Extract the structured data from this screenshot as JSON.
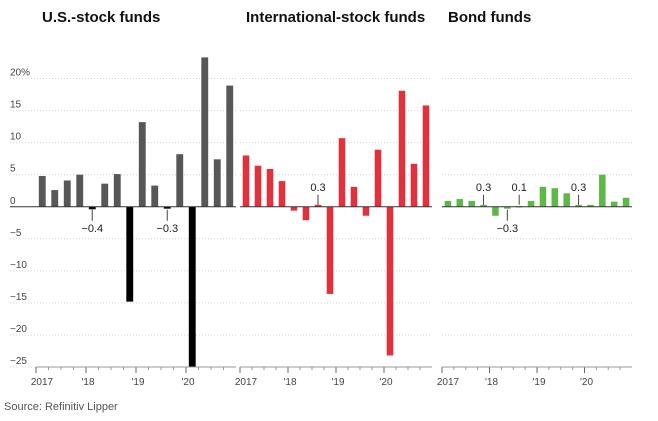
{
  "source": "Source: Refinitiv Lipper",
  "chart_data": [
    {
      "type": "bar",
      "title": "U.S.-stock funds",
      "color": "#575757",
      "negative_color": "#000000",
      "ylim": [
        -25,
        25
      ],
      "yticks": [
        20,
        15,
        10,
        5,
        0,
        -5,
        -10,
        -15,
        -20,
        -25
      ],
      "ytick_labels": [
        "20%",
        "15",
        "10",
        "5",
        "0",
        "−5",
        "−10",
        "−15",
        "−20",
        "−25"
      ],
      "xtick_labels": [
        "2017",
        "'18",
        "'19",
        "'20"
      ],
      "values": [
        4.8,
        2.6,
        4.1,
        5.0,
        -0.4,
        3.6,
        5.1,
        -14.8,
        13.2,
        3.3,
        -0.3,
        8.2,
        -25.0,
        23.3,
        7.4,
        18.9
      ],
      "annotations": [
        {
          "index": 4,
          "label": "−0.4"
        },
        {
          "index": 10,
          "label": "−0.3"
        }
      ]
    },
    {
      "type": "bar",
      "title": "International-stock funds",
      "color": "#e0323c",
      "negative_color": "#e0323c",
      "ylim": [
        -25,
        25
      ],
      "xtick_labels": [
        "2017",
        "'18",
        "'19",
        "'20"
      ],
      "values": [
        8.0,
        6.4,
        5.9,
        4.0,
        -0.6,
        -2.1,
        0.3,
        -13.6,
        10.7,
        3.1,
        -1.4,
        8.9,
        -23.2,
        18.1,
        6.7,
        15.8
      ],
      "annotations": [
        {
          "index": 6,
          "label": "0.3"
        }
      ]
    },
    {
      "type": "bar",
      "title": "Bond funds",
      "color": "#5cb946",
      "negative_color": "#5cb946",
      "ylim": [
        -25,
        25
      ],
      "xtick_labels": [
        "2017",
        "'18",
        "'19",
        "'20"
      ],
      "values": [
        0.9,
        1.2,
        0.9,
        0.3,
        -1.4,
        -0.3,
        0.1,
        0.9,
        3.1,
        2.9,
        2.1,
        0.3,
        0.3,
        5.0,
        0.8,
        1.4
      ],
      "annotations": [
        {
          "index": 3,
          "label": "0.3"
        },
        {
          "index": 5,
          "label": "−0.3"
        },
        {
          "index": 6,
          "label": "0.1"
        },
        {
          "index": 11,
          "label": "0.3"
        }
      ]
    }
  ]
}
